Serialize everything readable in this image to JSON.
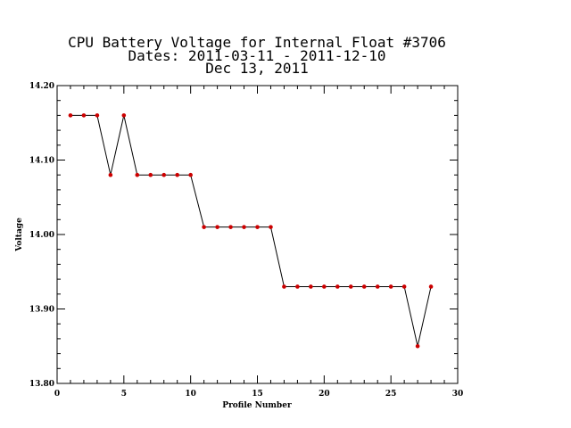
{
  "chart_data": {
    "type": "line",
    "title_lines": [
      "CPU Battery Voltage for Internal Float #3706",
      "Dates:  2011-03-11 -  2011-12-10",
      "Dec 13, 2011"
    ],
    "xlabel": "Profile Number",
    "ylabel": "Voltage",
    "xlim": [
      0,
      30
    ],
    "ylim": [
      13.8,
      14.2
    ],
    "x_ticks": [
      0,
      5,
      10,
      15,
      20,
      25,
      30
    ],
    "x_tick_labels": [
      "0",
      "5",
      "10",
      "15",
      "20",
      "25",
      "30"
    ],
    "y_ticks": [
      13.8,
      13.9,
      14.0,
      14.1,
      14.2
    ],
    "y_tick_labels": [
      "13.80",
      "13.90",
      "14.00",
      "14.10",
      "14.20"
    ],
    "x_minor_step": 1,
    "y_minor_step": 0.02,
    "grid": false,
    "line_color": "#000000",
    "marker_color": "#cc0000",
    "x": [
      1,
      2,
      3,
      4,
      5,
      6,
      7,
      8,
      9,
      10,
      11,
      12,
      13,
      14,
      15,
      16,
      17,
      18,
      19,
      20,
      21,
      22,
      23,
      24,
      25,
      26,
      27,
      28
    ],
    "y": [
      14.16,
      14.16,
      14.16,
      14.08,
      14.16,
      14.08,
      14.08,
      14.08,
      14.08,
      14.08,
      14.01,
      14.01,
      14.01,
      14.01,
      14.01,
      14.01,
      13.93,
      13.93,
      13.93,
      13.93,
      13.93,
      13.93,
      13.93,
      13.93,
      13.93,
      13.93,
      13.85,
      13.93
    ]
  }
}
